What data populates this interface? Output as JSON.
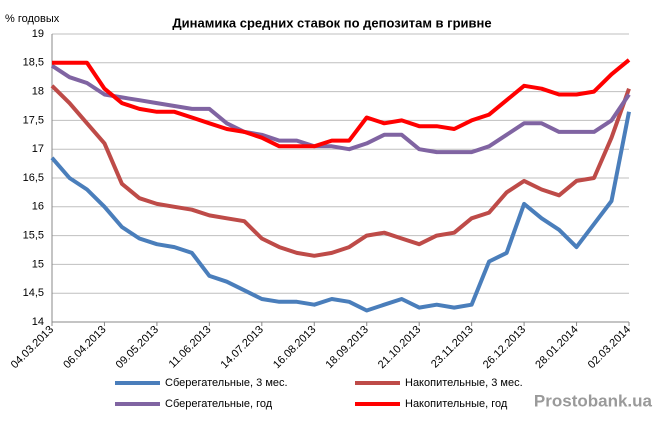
{
  "chart_data": {
    "type": "line",
    "title": "Динамика средних ставок по депозитам в гривне",
    "y_label": "% годовых",
    "watermark": "Prostobank.ua",
    "categories": [
      "04.03.2013",
      null,
      null,
      "06.04.2013",
      null,
      null,
      "09.05.2013",
      null,
      null,
      "11.06.2013",
      null,
      null,
      "14.07.2013",
      null,
      null,
      "16.08.2013",
      null,
      null,
      "18.09.2013",
      null,
      null,
      "21.10.2013",
      null,
      null,
      "23.11.2013",
      null,
      null,
      "26.12.2013",
      null,
      null,
      "28.01.2014",
      null,
      null,
      "02.03.2014"
    ],
    "ylim": [
      14,
      19
    ],
    "yticks": [
      14,
      {
        "value": 14.5,
        "label": "14,5"
      },
      15,
      {
        "value": 15.5,
        "label": "15,5"
      },
      16,
      {
        "value": 16.5,
        "label": "16,5"
      },
      17,
      {
        "value": 17.5,
        "label": "17,5"
      },
      18,
      {
        "value": 18.5,
        "label": "18,5"
      },
      19
    ],
    "grid": true,
    "series": [
      {
        "name": "Сберегательные, 3 мес.",
        "color": "#4a7ebb",
        "values": [
          16.85,
          16.5,
          16.3,
          16.0,
          15.65,
          15.45,
          15.35,
          15.3,
          15.2,
          14.8,
          14.7,
          14.55,
          14.4,
          14.35,
          14.35,
          14.3,
          14.4,
          14.35,
          14.2,
          14.3,
          14.4,
          14.25,
          14.3,
          14.25,
          14.3,
          15.05,
          15.2,
          16.05,
          15.8,
          15.6,
          15.3,
          15.7,
          16.1,
          17.65
        ]
      },
      {
        "name": "Накопительные, 3 мес.",
        "color": "#be4b48",
        "values": [
          18.1,
          17.8,
          17.45,
          17.1,
          16.4,
          16.15,
          16.05,
          16.0,
          15.95,
          15.85,
          15.8,
          15.75,
          15.45,
          15.3,
          15.2,
          15.15,
          15.2,
          15.3,
          15.5,
          15.55,
          15.45,
          15.35,
          15.5,
          15.55,
          15.8,
          15.9,
          16.25,
          16.45,
          16.3,
          16.2,
          16.45,
          16.5,
          17.2,
          18.05
        ]
      },
      {
        "name": "Сберегательные, год",
        "color": "#8064a2",
        "values": [
          18.45,
          18.25,
          18.15,
          17.95,
          17.9,
          17.85,
          17.8,
          17.75,
          17.7,
          17.7,
          17.45,
          17.3,
          17.25,
          17.15,
          17.15,
          17.05,
          17.05,
          17.0,
          17.1,
          17.25,
          17.25,
          17.0,
          16.95,
          16.95,
          16.95,
          17.05,
          17.25,
          17.45,
          17.45,
          17.3,
          17.3,
          17.3,
          17.5,
          17.95
        ]
      },
      {
        "name": "Накопительные, год",
        "color": "#ff0000",
        "values": [
          18.5,
          18.5,
          18.5,
          18.05,
          17.8,
          17.7,
          17.65,
          17.65,
          17.55,
          17.45,
          17.35,
          17.3,
          17.2,
          17.05,
          17.05,
          17.05,
          17.15,
          17.15,
          17.55,
          17.45,
          17.5,
          17.4,
          17.4,
          17.35,
          17.5,
          17.6,
          17.85,
          18.1,
          18.05,
          17.95,
          17.95,
          18.0,
          18.3,
          18.55
        ]
      }
    ]
  }
}
